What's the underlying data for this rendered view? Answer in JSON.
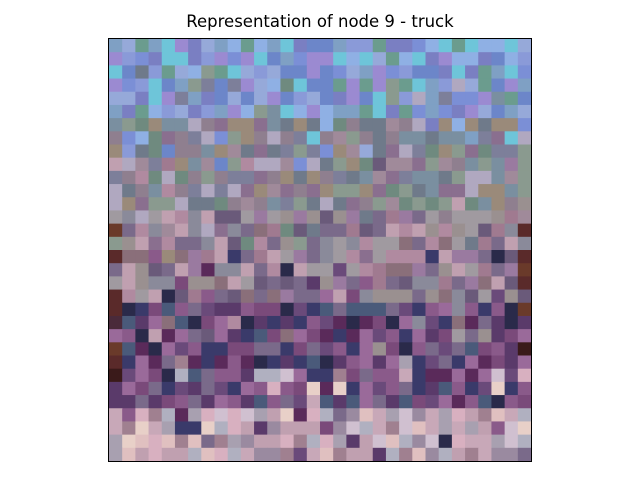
{
  "figure": {
    "title": "Representation of node 9 - truck"
  },
  "image": {
    "grid_cols": 32,
    "grid_rows": 32,
    "seed": 9,
    "regions": [
      {
        "name": "sky",
        "palette": [
          "#7b8fd6",
          "#8a9ad8",
          "#6c86c9",
          "#96a9d9",
          "#7fa0c4",
          "#9b8ad1",
          "#6ec5d9",
          "#8fb0e4",
          "#7a7fc2",
          "#6b9c8e"
        ]
      },
      {
        "name": "upper-mid",
        "palette": [
          "#7d7f9a",
          "#8f7f8f",
          "#6f8a7f",
          "#9a8a7a",
          "#8a6f8f",
          "#7a8fa0",
          "#a08a9a",
          "#6f7a8a",
          "#8a9a8f",
          "#b0a8c0"
        ]
      },
      {
        "name": "middle",
        "palette": [
          "#a07a90",
          "#8a6f7a",
          "#b08aa0",
          "#9a9090",
          "#7a6a8a",
          "#c0a0b0",
          "#8a8a9a",
          "#a09aa0",
          "#6a5a7a",
          "#9a7aa0"
        ]
      },
      {
        "name": "lower-mid",
        "palette": [
          "#7a4a7a",
          "#5a3a6a",
          "#8a5a8a",
          "#3a3a6a",
          "#6a4a7a",
          "#9a6a9a",
          "#4a5a7a",
          "#2a2a4a",
          "#7a6a8a",
          "#5a2a5a"
        ]
      },
      {
        "name": "bottom",
        "palette": [
          "#c0a0b0",
          "#d8b0c0",
          "#a08090",
          "#e0c0c0",
          "#b0b0c0",
          "#c8a8b8",
          "#9a8aa0",
          "#d0c0d0",
          "#e8d0c8",
          "#a8a0b0"
        ]
      }
    ],
    "edge_palette": [
      "#5a2a2a",
      "#3a1a1a",
      "#6a3a2a",
      "#2a1a2a",
      "#4a2a3a"
    ]
  }
}
